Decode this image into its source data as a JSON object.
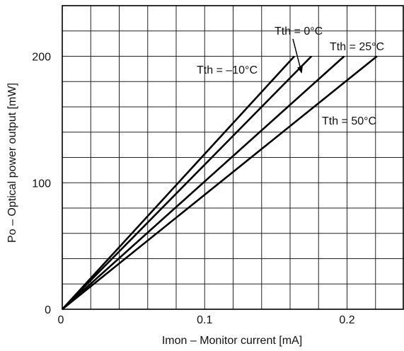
{
  "chart_data": {
    "type": "line",
    "xlabel": "Imon – Monitor current [mA]",
    "ylabel": "Po – Optical power output [mW]",
    "xlim": [
      0,
      0.24
    ],
    "ylim": [
      0,
      240
    ],
    "x_ticks": [
      "0",
      "0.1",
      "0.2"
    ],
    "y_ticks": [
      "0",
      "100",
      "200"
    ],
    "x_tick_values": [
      0,
      0.1,
      0.2
    ],
    "y_tick_values": [
      0,
      100,
      200
    ],
    "grid": true,
    "x_grid_step": 0.02,
    "y_grid_step": 20,
    "series": [
      {
        "name": "Tth = –10°C",
        "x": [
          0,
          0.163
        ],
        "y": [
          0,
          200
        ]
      },
      {
        "name": "Tth = 0°C",
        "x": [
          0,
          0.175
        ],
        "y": [
          0,
          200
        ]
      },
      {
        "name": "Tth = 25°C",
        "x": [
          0,
          0.198
        ],
        "y": [
          0,
          200
        ]
      },
      {
        "name": "Tth = 50°C",
        "x": [
          0,
          0.221
        ],
        "y": [
          0,
          200
        ]
      }
    ],
    "series_colors": [
      "#000000",
      "#000000",
      "#000000",
      "#000000"
    ]
  }
}
